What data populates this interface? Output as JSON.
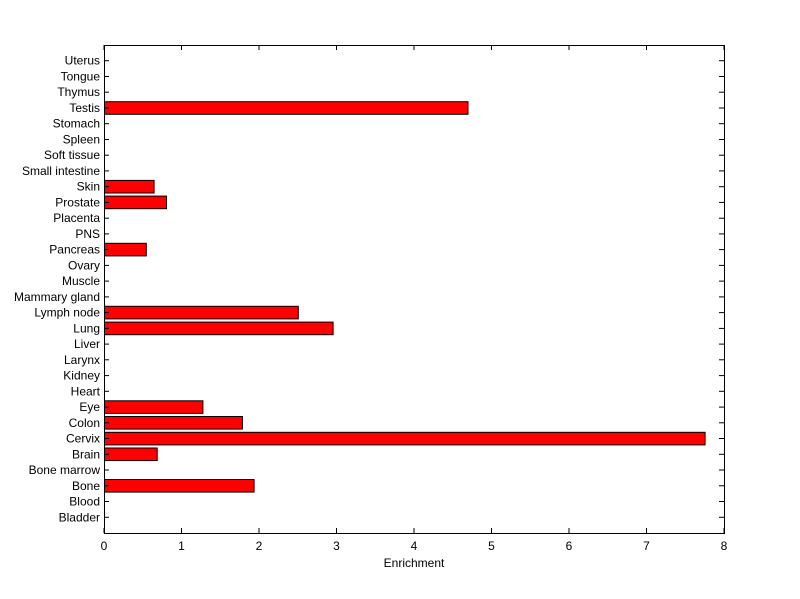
{
  "chart_data": {
    "type": "bar",
    "orientation": "horizontal",
    "title": "",
    "xlabel": "Enrichment",
    "ylabel": "",
    "xlim": [
      0,
      8
    ],
    "xticks": [
      0,
      1,
      2,
      3,
      4,
      5,
      6,
      7,
      8
    ],
    "grid": false,
    "categories": [
      "Bladder",
      "Blood",
      "Bone",
      "Bone marrow",
      "Brain",
      "Cervix",
      "Colon",
      "Eye",
      "Heart",
      "Kidney",
      "Larynx",
      "Liver",
      "Lung",
      "Lymph node",
      "Mammary gland",
      "Muscle",
      "Ovary",
      "Pancreas",
      "PNS",
      "Placenta",
      "Prostate",
      "Skin",
      "Small intestine",
      "Soft tissue",
      "Spleen",
      "Stomach",
      "Testis",
      "Thymus",
      "Tongue",
      "Uterus"
    ],
    "values": [
      0,
      0,
      1.93,
      0,
      0.68,
      7.75,
      1.78,
      1.27,
      0,
      0,
      0,
      0,
      2.95,
      2.5,
      0,
      0,
      0,
      0.54,
      0,
      0,
      0.8,
      0.64,
      0,
      0,
      0,
      0,
      4.69,
      0,
      0,
      0
    ],
    "bar_color": "#ff0000",
    "bar_edge_color": "#000000"
  }
}
